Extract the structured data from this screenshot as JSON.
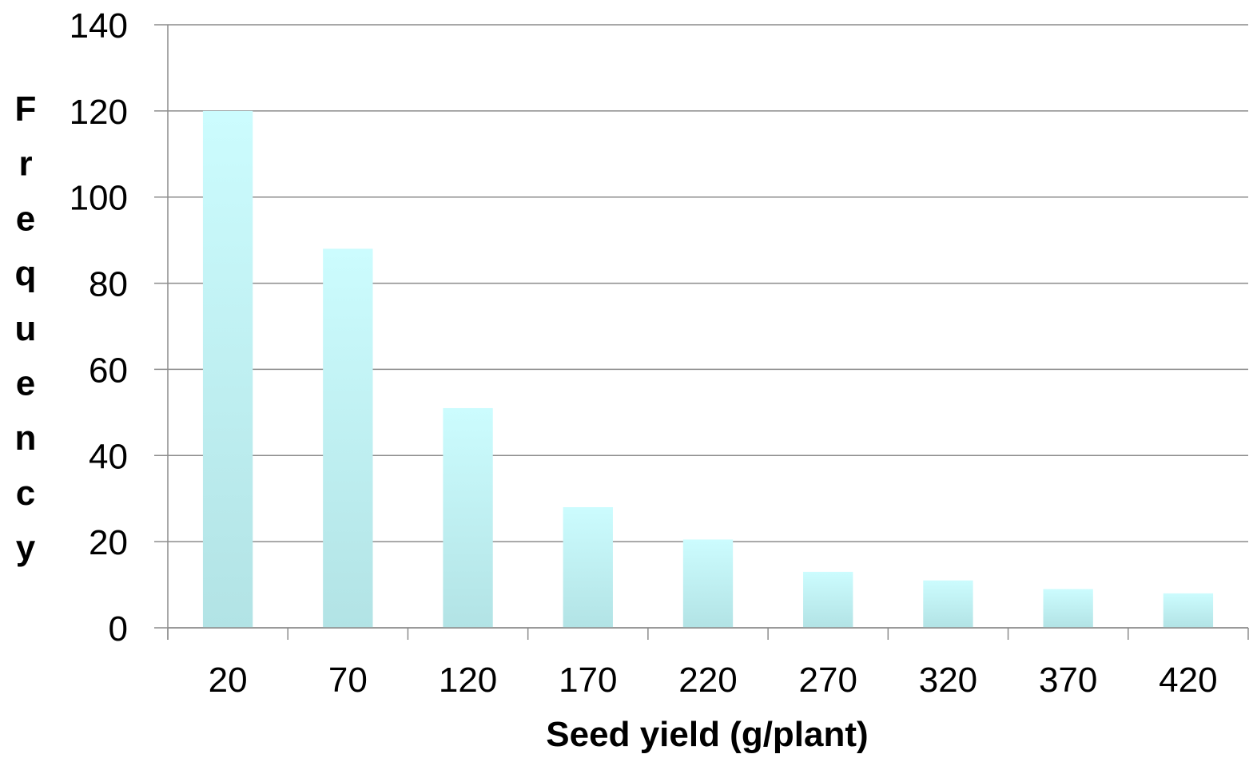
{
  "chart_data": {
    "type": "bar",
    "title": "",
    "xlabel": "Seed yield (g/plant)",
    "ylabel": "Frequency",
    "categories": [
      "20",
      "70",
      "120",
      "170",
      "220",
      "270",
      "320",
      "370",
      "420"
    ],
    "values": [
      120,
      88,
      51,
      28,
      20.5,
      13,
      11,
      9,
      8
    ],
    "ylim": [
      0,
      140
    ],
    "yticks": [
      "0",
      "20",
      "40",
      "60",
      "80",
      "100",
      "120",
      "140"
    ],
    "grid": true,
    "legend": "none",
    "colors": {
      "bar_top": "#ccfcfe",
      "bar_bottom": "#b2e3e5",
      "grid": "#8c8c8c"
    }
  }
}
